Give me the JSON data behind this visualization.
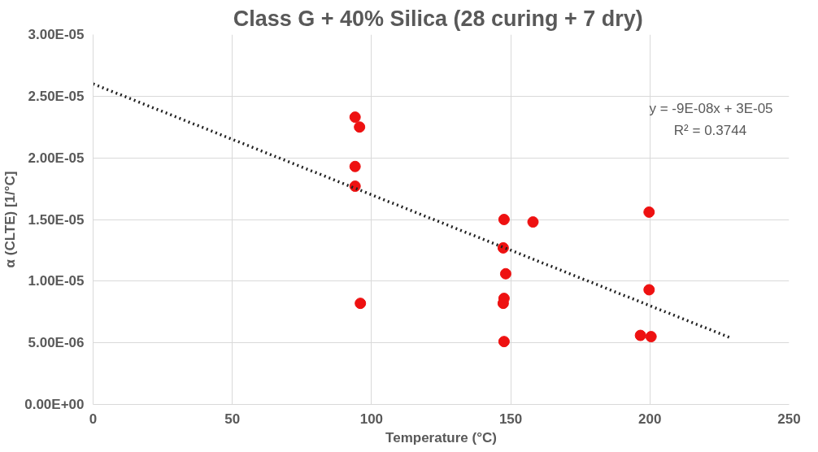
{
  "chart_data": {
    "type": "scatter",
    "title": "Class G + 40% Silica  (28 curing + 7 dry)",
    "xlabel": "Temperature (°C)",
    "ylabel": "α (CLTE) [1/°C]",
    "xlim": [
      0,
      250
    ],
    "xticks": [
      0,
      50,
      100,
      150,
      200,
      250
    ],
    "ylim": [
      0,
      3e-05
    ],
    "yticks": [
      {
        "value": 0,
        "label": "0.00E+00"
      },
      {
        "value": 5e-06,
        "label": "5.00E-06"
      },
      {
        "value": 1e-05,
        "label": "1.00E-05"
      },
      {
        "value": 1.5e-05,
        "label": "1.50E-05"
      },
      {
        "value": 2e-05,
        "label": "2.00E-05"
      },
      {
        "value": 2.5e-05,
        "label": "2.50E-05"
      },
      {
        "value": 3e-05,
        "label": "3.00E-05"
      }
    ],
    "grid": true,
    "series": [
      {
        "marker": "circle",
        "color": "#ee1111",
        "x": [
          94.1,
          95.7,
          94.1,
          94.1,
          96,
          147.6,
          158,
          147.3,
          148.2,
          147.6,
          147.3,
          147.6,
          199.7,
          199.7,
          196.6,
          200.4
        ],
        "values": [
          2.33e-05,
          2.25e-05,
          1.93e-05,
          1.77e-05,
          8.2e-06,
          1.5e-05,
          1.48e-05,
          1.27e-05,
          1.06e-05,
          8.6e-06,
          8.2e-06,
          5.1e-06,
          1.56e-05,
          9.3e-06,
          5.6e-06,
          5.5e-06
        ]
      },
      {
        "type": "line",
        "color": "#222222",
        "line_style": "dotted",
        "x": [
          0,
          229
        ],
        "values": [
          2.6e-05,
          5.4e-06
        ]
      }
    ],
    "annotations": [
      "y = -9E-08x + 3E-05",
      "R² = 0.3744"
    ]
  }
}
